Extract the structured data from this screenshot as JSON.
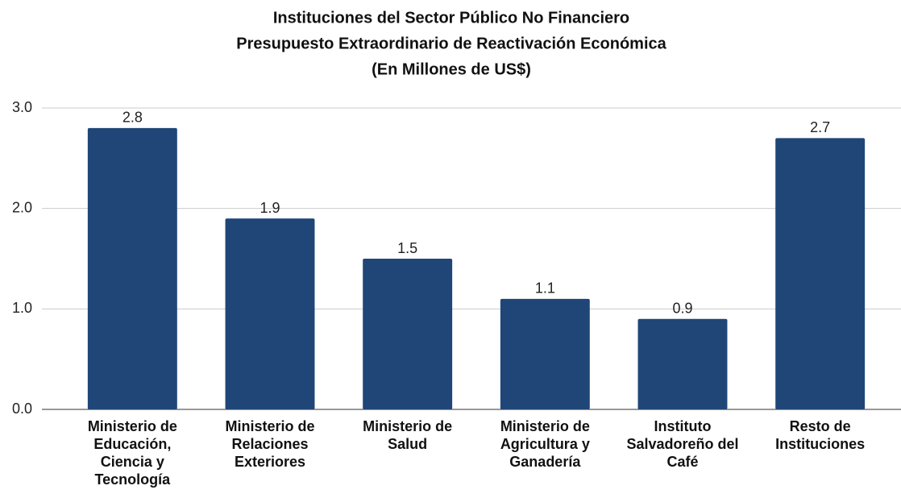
{
  "chart_data": {
    "type": "bar",
    "title": [
      "Instituciones del Sector Público No Financiero",
      "Presupuesto Extraordinario de Reactivación Económica",
      "(En Millones de US$)"
    ],
    "categories": [
      "Ministerio de Educación, Ciencia y Tecnología",
      "Ministerio de Relaciones Exteriores",
      "Ministerio de Salud",
      "Ministerio de Agricultura y Ganadería",
      "Instituto Salvadoreño del Café",
      "Resto de Instituciones"
    ],
    "values": [
      2.8,
      1.9,
      1.5,
      1.1,
      0.9,
      2.7
    ],
    "color": "#1f4677",
    "ylim": [
      0,
      3
    ],
    "yticks": [
      {
        "value": 0,
        "label": "0.0"
      },
      {
        "value": 1,
        "label": "1.0"
      },
      {
        "value": 2,
        "label": "2.0"
      },
      {
        "value": 3,
        "label": "3.0"
      }
    ],
    "grid": true
  }
}
